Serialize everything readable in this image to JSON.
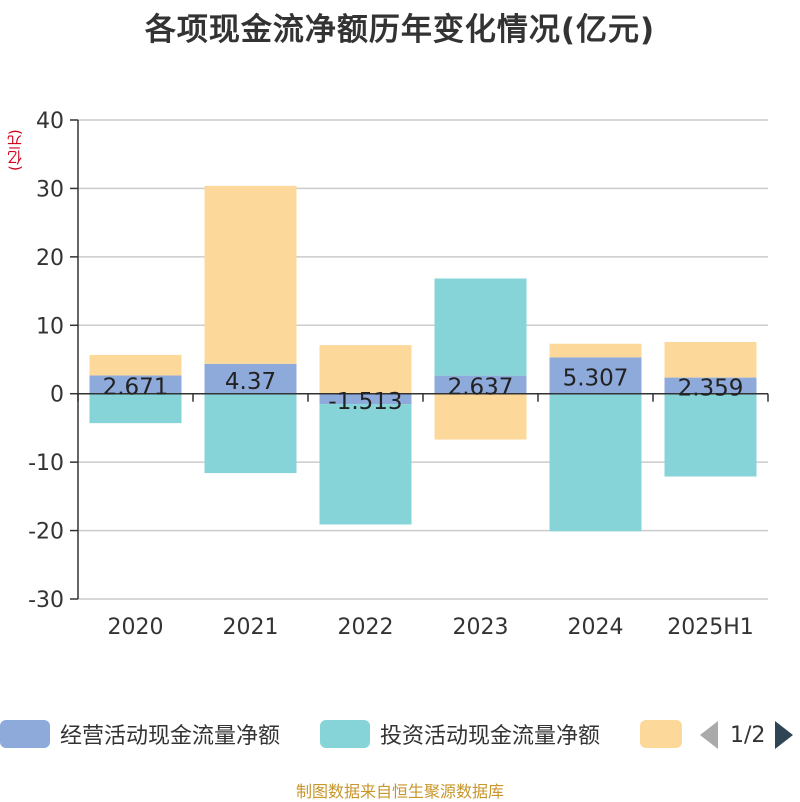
{
  "title": "各项现金流净额历年变化情况(亿元)",
  "y_unit": "(亿元)",
  "source": "制图数据来自恒生聚源数据库",
  "pager": {
    "text": "1/2"
  },
  "colors": {
    "operating": "#8eaadb",
    "investing": "#86d4d8",
    "financing": "#fdd89b"
  },
  "chart_data": {
    "type": "bar",
    "stacked": true,
    "categories": [
      "2020",
      "2021",
      "2022",
      "2023",
      "2024",
      "2025H1"
    ],
    "ylim": [
      -30,
      40
    ],
    "yticks": [
      "-30",
      "-20",
      "-10",
      "0",
      "10",
      "20",
      "30",
      "40"
    ],
    "grid": true,
    "legend_position": "bottom",
    "series": [
      {
        "name": "经营活动现金流量净额",
        "values": [
          2.671,
          4.37,
          -1.513,
          2.637,
          5.307,
          2.359
        ],
        "labels": [
          "2.671",
          "4.37",
          "-1.513",
          "2.637",
          "5.307",
          "2.359"
        ]
      },
      {
        "name": "投资活动现金流量净额",
        "values": [
          -4.3,
          -11.6,
          -17.6,
          14.2,
          -20.1,
          -12.1
        ]
      },
      {
        "name": "",
        "values": [
          3.0,
          26.0,
          7.1,
          -6.7,
          2.0,
          5.2
        ]
      }
    ]
  }
}
